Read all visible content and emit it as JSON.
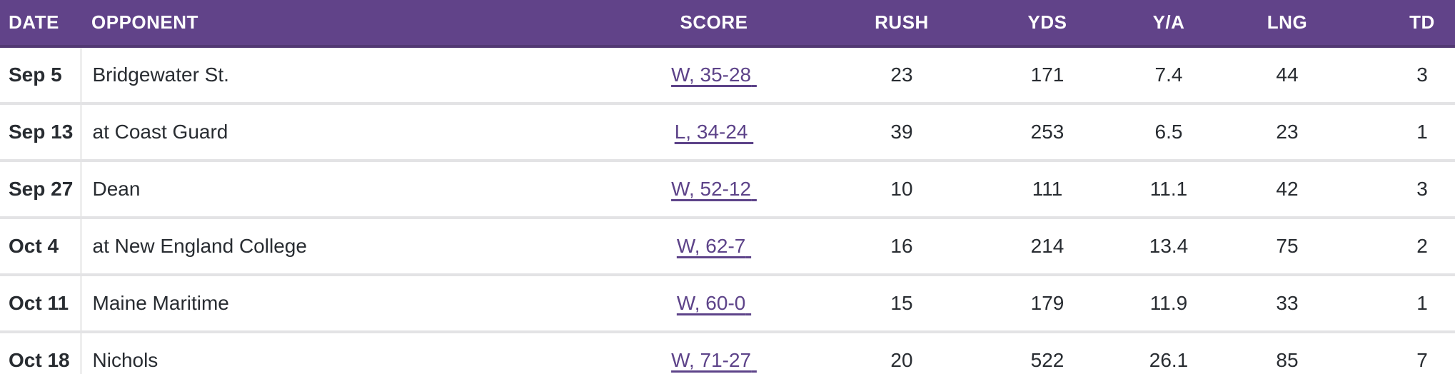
{
  "table": {
    "columns": {
      "date": {
        "label": "DATE"
      },
      "opponent": {
        "label": "OPPONENT"
      },
      "score": {
        "label": "SCORE"
      },
      "rush": {
        "label": "RUSH"
      },
      "yds": {
        "label": "YDS"
      },
      "ya": {
        "label": "Y/A"
      },
      "lng": {
        "label": "LNG"
      },
      "td": {
        "label": "TD"
      }
    },
    "rows": [
      {
        "date": "Sep 5",
        "opponent": "Bridgewater St.",
        "score": "W, 35-28",
        "rush": "23",
        "yds": "171",
        "ya": "7.4",
        "lng": "44",
        "td": "3"
      },
      {
        "date": "Sep 13",
        "opponent": "at Coast Guard",
        "score": "L, 34-24",
        "rush": "39",
        "yds": "253",
        "ya": "6.5",
        "lng": "23",
        "td": "1"
      },
      {
        "date": "Sep 27",
        "opponent": "Dean",
        "score": "W, 52-12",
        "rush": "10",
        "yds": "111",
        "ya": "11.1",
        "lng": "42",
        "td": "3"
      },
      {
        "date": "Oct 4",
        "opponent": "at New England College",
        "score": "W, 62-7",
        "rush": "16",
        "yds": "214",
        "ya": "13.4",
        "lng": "75",
        "td": "2"
      },
      {
        "date": "Oct 11",
        "opponent": "Maine Maritime",
        "score": "W, 60-0",
        "rush": "15",
        "yds": "179",
        "ya": "11.9",
        "lng": "33",
        "td": "1"
      },
      {
        "date": "Oct 18",
        "opponent": "Nichols",
        "score": "W, 71-27",
        "rush": "20",
        "yds": "522",
        "ya": "26.1",
        "lng": "85",
        "td": "7"
      }
    ],
    "colors": {
      "header_bg": "#614389",
      "header_border": "#523973",
      "link": "#5d4389",
      "body_text": "#282c31",
      "row_separator": "#e3e3e5",
      "date_divider": "#eeeeee"
    }
  }
}
